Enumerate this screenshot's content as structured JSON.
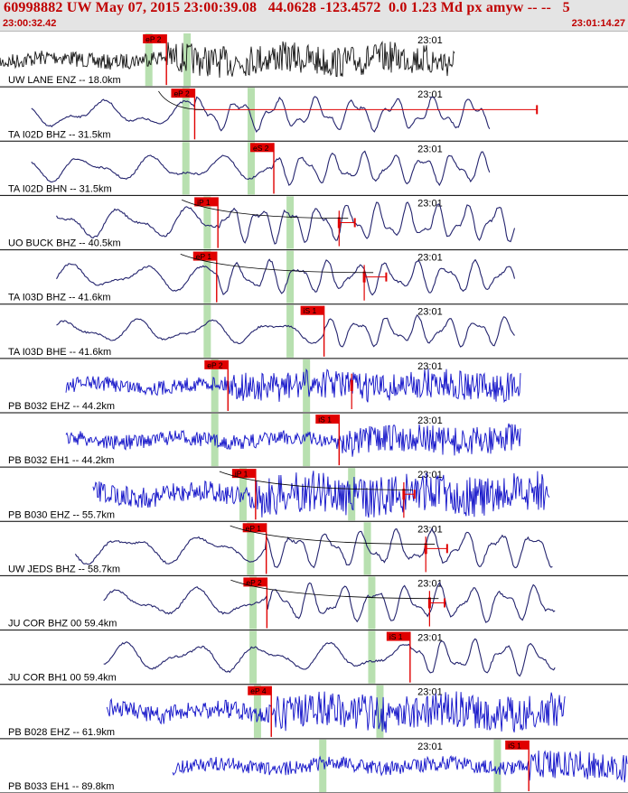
{
  "header": {
    "title": "60998882 UW May 07, 2015 23:00:39.08   44.0628 -123.4572  0.0 1.23 Md px amyw -- --   5",
    "start_time": "23:00:32.42",
    "end_time": "23:01:14.27"
  },
  "colors": {
    "trace_dark": "#141414",
    "trace_navy": "#24246e",
    "trace_blue": "#1010c8",
    "pick_red": "#e00000",
    "window_green": "#b8e0b0",
    "divider": "#000000"
  },
  "time_mark_label": "23:01",
  "traces": [
    {
      "label": "UW LANE ENZ -- 18.0km",
      "color": "trace_dark",
      "type": "noise",
      "amp": 0.32,
      "wave_start": 0.0,
      "wave_end": 0.725,
      "picks": [
        {
          "label": "eP 2",
          "x": 0.265,
          "coda_end": 0
        }
      ],
      "windows": [
        0.237,
        0.298
      ]
    },
    {
      "label": "TA I02D BHZ -- 31.5km",
      "color": "trace_navy",
      "type": "smooth",
      "amp": 0.38,
      "wave_start": 0.05,
      "wave_end": 0.78,
      "picks": [
        {
          "label": "eP 2",
          "x": 0.31,
          "coda_end": 0.855
        }
      ],
      "windows": [
        0.296,
        0.4
      ]
    },
    {
      "label": "TA I02D BHN -- 31.5km",
      "color": "trace_navy",
      "type": "smooth",
      "amp": 0.36,
      "wave_start": 0.05,
      "wave_end": 0.78,
      "picks": [
        {
          "label": "eS 2",
          "x": 0.436,
          "coda_end": 0
        }
      ],
      "windows": [
        0.296,
        0.4
      ]
    },
    {
      "label": "UO BUCK BHZ -- 40.5km",
      "color": "trace_navy",
      "type": "smooth",
      "amp": 0.44,
      "wave_start": 0.09,
      "wave_end": 0.82,
      "picks": [
        {
          "label": "iP 1",
          "x": 0.347,
          "coda_end": 0
        },
        {
          "label": "",
          "x": 0.54,
          "coda_end": 0.565
        }
      ],
      "windows": [
        0.33,
        0.462
      ]
    },
    {
      "label": "TA I03D BHZ -- 41.6km",
      "color": "trace_navy",
      "type": "smooth",
      "amp": 0.38,
      "wave_start": 0.09,
      "wave_end": 0.82,
      "picks": [
        {
          "label": "eP 1",
          "x": 0.345,
          "coda_end": 0
        },
        {
          "label": "",
          "x": 0.58,
          "coda_end": 0.615
        }
      ],
      "windows": [
        0.33,
        0.462
      ]
    },
    {
      "label": "TA I03D BHE -- 41.6km",
      "color": "trace_navy",
      "type": "smooth",
      "amp": 0.34,
      "wave_start": 0.09,
      "wave_end": 0.82,
      "picks": [
        {
          "label": "iS 1",
          "x": 0.516,
          "coda_end": 0
        }
      ],
      "windows": [
        0.33,
        0.462
      ]
    },
    {
      "label": "PB B032 EHZ -- 44.2km",
      "color": "trace_blue",
      "type": "noise",
      "amp": 0.3,
      "wave_start": 0.105,
      "wave_end": 0.83,
      "picks": [
        {
          "label": "eP 2",
          "x": 0.363,
          "coda_end": 0
        },
        {
          "label": "",
          "x": 0.56,
          "coda_end": 0
        }
      ],
      "windows": [
        0.342,
        0.488
      ]
    },
    {
      "label": "PB B032 EH1 -- 44.2km",
      "color": "trace_blue",
      "type": "noise",
      "amp": 0.3,
      "wave_start": 0.105,
      "wave_end": 0.83,
      "picks": [
        {
          "label": "iS 1",
          "x": 0.54,
          "coda_end": 0
        }
      ],
      "windows": [
        0.342,
        0.488
      ]
    },
    {
      "label": "PB B030 EHZ -- 55.7km",
      "color": "trace_blue",
      "type": "noise",
      "amp": 0.42,
      "wave_start": 0.148,
      "wave_end": 0.875,
      "picks": [
        {
          "label": "iP 1",
          "x": 0.407,
          "coda_end": 0
        },
        {
          "label": "",
          "x": 0.643,
          "coda_end": 0.66
        }
      ],
      "windows": [
        0.387,
        0.56
      ]
    },
    {
      "label": "UW JEDS BHZ -- 58.7km",
      "color": "trace_navy",
      "type": "smooth",
      "amp": 0.42,
      "wave_start": 0.12,
      "wave_end": 0.88,
      "picks": [
        {
          "label": "eP 1",
          "x": 0.424,
          "coda_end": 0
        },
        {
          "label": "",
          "x": 0.678,
          "coda_end": 0.712
        }
      ],
      "windows": [
        0.399,
        0.585
      ]
    },
    {
      "label": "JU COR BHZ 00 59.4km",
      "color": "trace_navy",
      "type": "smooth",
      "amp": 0.42,
      "wave_start": 0.165,
      "wave_end": 0.885,
      "picks": [
        {
          "label": "eP 2",
          "x": 0.425,
          "coda_end": 0
        },
        {
          "label": "",
          "x": 0.684,
          "coda_end": 0.708
        }
      ],
      "windows": [
        0.403,
        0.592
      ]
    },
    {
      "label": "JU COR BH1 00 59.4km",
      "color": "trace_navy",
      "type": "smooth",
      "amp": 0.4,
      "wave_start": 0.165,
      "wave_end": 0.885,
      "picks": [
        {
          "label": "iS 1",
          "x": 0.653,
          "coda_end": 0
        }
      ],
      "windows": [
        0.403,
        0.592
      ]
    },
    {
      "label": "PB B028 EHZ -- 61.9km",
      "color": "trace_blue",
      "type": "noise",
      "amp": 0.38,
      "wave_start": 0.17,
      "wave_end": 0.9,
      "picks": [
        {
          "label": "eP 4",
          "x": 0.432,
          "coda_end": 0
        }
      ],
      "windows": [
        0.41,
        0.605
      ]
    },
    {
      "label": "PB B033 EH1 -- 89.8km",
      "color": "trace_blue",
      "type": "noise",
      "amp": 0.3,
      "wave_start": 0.275,
      "wave_end": 1.0,
      "picks": [
        {
          "label": "iS 1",
          "x": 0.842,
          "coda_end": 0
        }
      ],
      "windows": [
        0.514,
        0.792
      ]
    }
  ]
}
